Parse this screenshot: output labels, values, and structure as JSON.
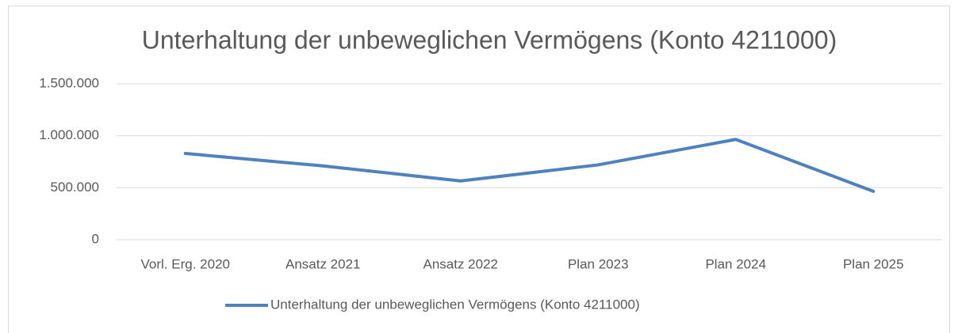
{
  "chart_data": {
    "type": "line",
    "title": "Unterhaltung der unbeweglichen Vermögens (Konto 4211000)",
    "categories": [
      "Vorl. Erg. 2020",
      "Ansatz 2021",
      "Ansatz 2022",
      "Plan 2023",
      "Plan 2024",
      "Plan 2025"
    ],
    "series": [
      {
        "name": "Unterhaltung der unbeweglichen Vermögens (Konto 4211000)",
        "color": "#4f81bd",
        "values": [
          830000,
          710000,
          565000,
          720000,
          965000,
          465000
        ]
      }
    ],
    "ylim": [
      0,
      1500000
    ],
    "yticks": [
      0,
      {
        "value": 500000,
        "label": "500.000"
      },
      {
        "value": 1000000,
        "label": "1.000.000"
      },
      {
        "value": 1500000,
        "label": "1.500.000"
      }
    ],
    "grid": true,
    "legend": "bottom"
  }
}
